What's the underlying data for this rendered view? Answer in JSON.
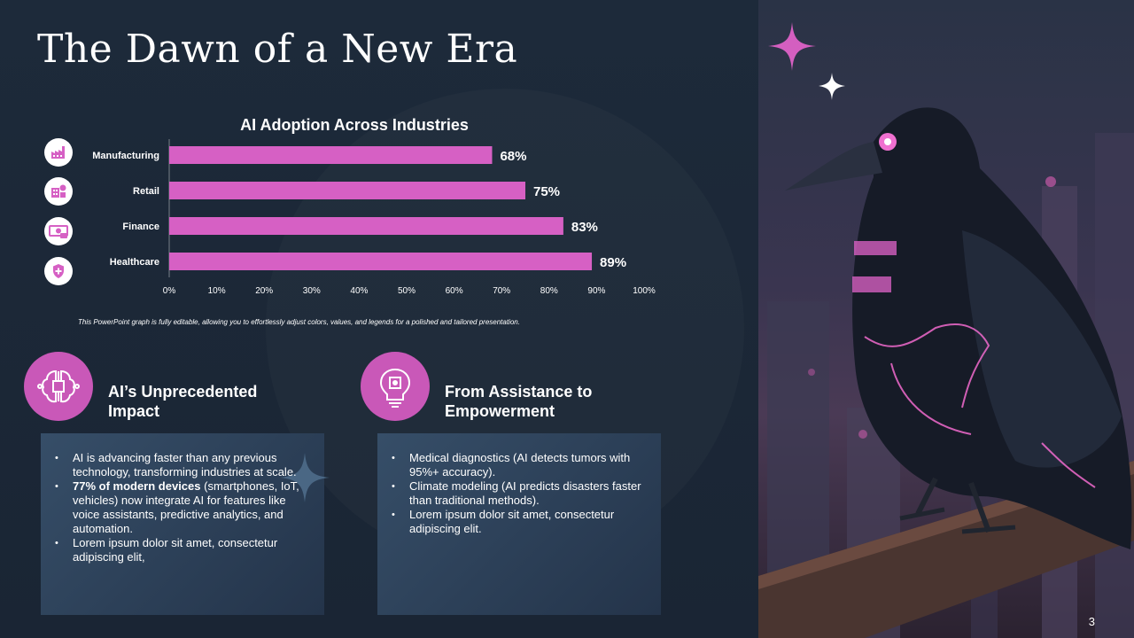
{
  "slide": {
    "title": "The Dawn of a New Era",
    "page_number": "3",
    "note": "This PowerPoint graph is fully editable, allowing you to effortlessly adjust colors, values, and legends for a polished and tailored presentation."
  },
  "colors": {
    "background": "#1c2838",
    "bar": "#d660c4",
    "accent": "#c958b8",
    "text": "#ffffff"
  },
  "chart_data": {
    "type": "bar",
    "orientation": "horizontal",
    "title": "AI Adoption Across Industries",
    "categories": [
      "Manufacturing",
      "Retail",
      "Finance",
      "Healthcare"
    ],
    "values": [
      68,
      75,
      83,
      89
    ],
    "value_labels": [
      "68%",
      "75%",
      "83%",
      "89%"
    ],
    "xlim": [
      0,
      100
    ],
    "x_ticks": [
      "0%",
      "10%",
      "20%",
      "30%",
      "40%",
      "50%",
      "60%",
      "70%",
      "80%",
      "90%",
      "100%"
    ],
    "category_icons": [
      "factory-icon",
      "shop-icon",
      "money-icon",
      "shield-plus-icon"
    ],
    "grid": false,
    "legend": "none"
  },
  "sections": [
    {
      "heading": "AI’s Unprecedented Impact",
      "icon": "brain-circuit-icon",
      "bullets": [
        {
          "bold": "",
          "text": "AI is advancing faster than any previous technology, transforming industries at scale."
        },
        {
          "bold": "77% of modern devices",
          "text": " (smartphones, IoT, vehicles) now integrate AI for features like voice assistants, predictive analytics, and automation."
        },
        {
          "bold": "",
          "text": "Lorem ipsum dolor sit amet, consectetur adipiscing elit,"
        }
      ]
    },
    {
      "heading": "From Assistance to Empowerment",
      "icon": "brain-bulb-icon",
      "bullets": [
        {
          "bold": "",
          "text": "Medical diagnostics (AI detects tumors with 95%+ accuracy)."
        },
        {
          "bold": "",
          "text": "Climate modeling (AI predicts disasters faster than traditional methods)."
        },
        {
          "bold": "",
          "text": "Lorem ipsum dolor sit amet, consectetur adipiscing elit."
        }
      ]
    }
  ],
  "image": {
    "subject": "raven-image"
  }
}
